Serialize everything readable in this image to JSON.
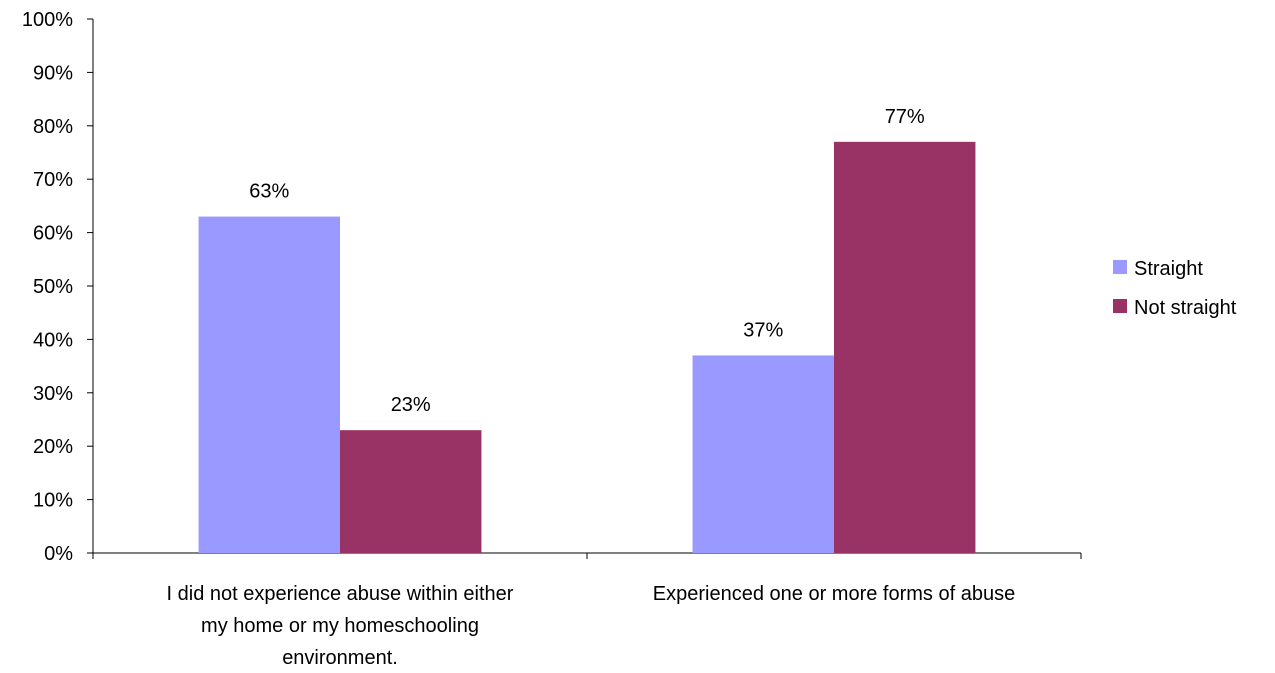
{
  "chart_data": {
    "type": "bar",
    "categories": [
      [
        "I did not experience abuse within either",
        "my home or my homeschooling",
        "environment."
      ],
      [
        "Experienced one or more forms of abuse"
      ]
    ],
    "series": [
      {
        "name": "Straight",
        "values": [
          63,
          37
        ],
        "color": "#9999ff"
      },
      {
        "name": "Not straight",
        "values": [
          23,
          77
        ],
        "color": "#993366"
      }
    ],
    "data_labels": [
      [
        "63%",
        "37%"
      ],
      [
        "23%",
        "77%"
      ]
    ],
    "ylim": [
      0,
      100
    ],
    "y_ticks": [
      "0%",
      "10%",
      "20%",
      "30%",
      "40%",
      "50%",
      "60%",
      "70%",
      "80%",
      "90%",
      "100%"
    ],
    "grid": false,
    "legend_position": "right",
    "title": "",
    "xlabel": "",
    "ylabel": ""
  }
}
